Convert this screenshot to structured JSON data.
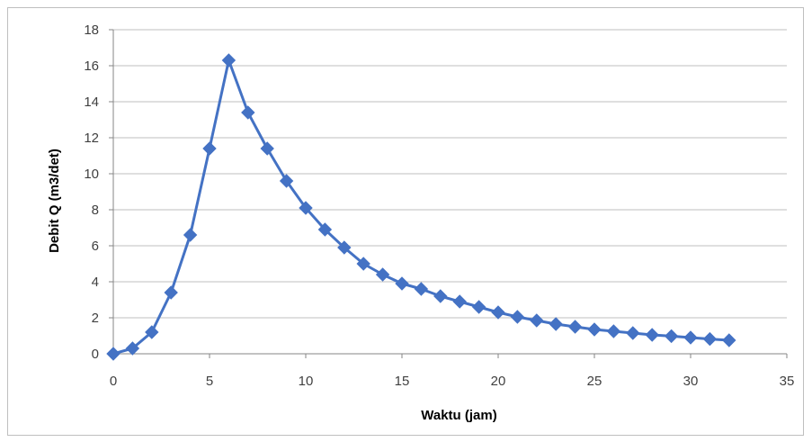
{
  "chart_data": {
    "type": "line",
    "title": "",
    "xlabel": "Waktu (jam)",
    "ylabel": "Debit Q (m3/det)",
    "xlim": [
      0,
      35
    ],
    "ylim": [
      0,
      18
    ],
    "xticks": [
      0,
      5,
      10,
      15,
      20,
      25,
      30,
      35
    ],
    "yticks": [
      0,
      2,
      4,
      6,
      8,
      10,
      12,
      14,
      16,
      18
    ],
    "grid": "horizontal",
    "legend": "none",
    "series_color": "#4472C4",
    "marker": "diamond",
    "series": [
      {
        "x": [
          0,
          1,
          2,
          3,
          4,
          5,
          6,
          7,
          8,
          9,
          10,
          11,
          12,
          13,
          14,
          15,
          16,
          17,
          18,
          19,
          20,
          21,
          22,
          23,
          24,
          25,
          26,
          27,
          28,
          29,
          30,
          31,
          32
        ],
        "values": [
          0,
          0.3,
          1.2,
          3.4,
          6.6,
          11.4,
          16.3,
          13.4,
          11.4,
          9.6,
          8.1,
          6.9,
          5.9,
          5.0,
          4.4,
          3.9,
          3.6,
          3.2,
          2.9,
          2.6,
          2.3,
          2.05,
          1.85,
          1.65,
          1.5,
          1.35,
          1.25,
          1.15,
          1.05,
          0.98,
          0.9,
          0.82,
          0.75
        ]
      }
    ]
  }
}
